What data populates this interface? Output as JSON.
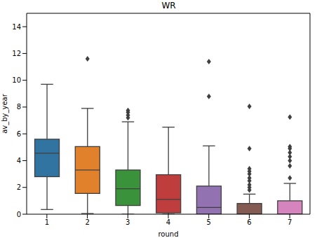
{
  "chart_data": {
    "type": "box",
    "title": "WR",
    "x_label": "round",
    "y_label": "av_by_year",
    "categories": [
      "1",
      "2",
      "3",
      "4",
      "5",
      "6",
      "7"
    ],
    "whislo": [
      0.35,
      0.05,
      0,
      0,
      0,
      0,
      0
    ],
    "q1": [
      2.8,
      1.55,
      0.65,
      0.1,
      0,
      0,
      0
    ],
    "med": [
      4.55,
      3.3,
      1.9,
      1.1,
      0.5,
      0,
      0
    ],
    "q3": [
      5.6,
      5.05,
      3.3,
      2.95,
      2.1,
      0.8,
      1.0
    ],
    "whishi": [
      9.7,
      7.9,
      6.9,
      6.5,
      5.1,
      1.5,
      2.3
    ],
    "fliers": [
      [],
      [
        11.6
      ],
      [
        7.2,
        7.4,
        7.6,
        7.75
      ],
      [],
      [
        8.8,
        11.4
      ],
      [
        1.8,
        2.0,
        2.2,
        2.5,
        2.7,
        3.0,
        3.2,
        3.4,
        4.9,
        8.05
      ],
      [
        2.7,
        3.6,
        4.0,
        4.3,
        4.6,
        4.9,
        5.05,
        7.25
      ]
    ],
    "colors": [
      "#3274a1",
      "#e1812c",
      "#3a923a",
      "#c03d3e",
      "#9372b2",
      "#845b53",
      "#d684bd"
    ],
    "marker": "diamond",
    "ylim": [
      0,
      15
    ],
    "yticks": [
      0,
      2,
      4,
      6,
      8,
      10,
      12,
      14
    ],
    "grid": false
  }
}
